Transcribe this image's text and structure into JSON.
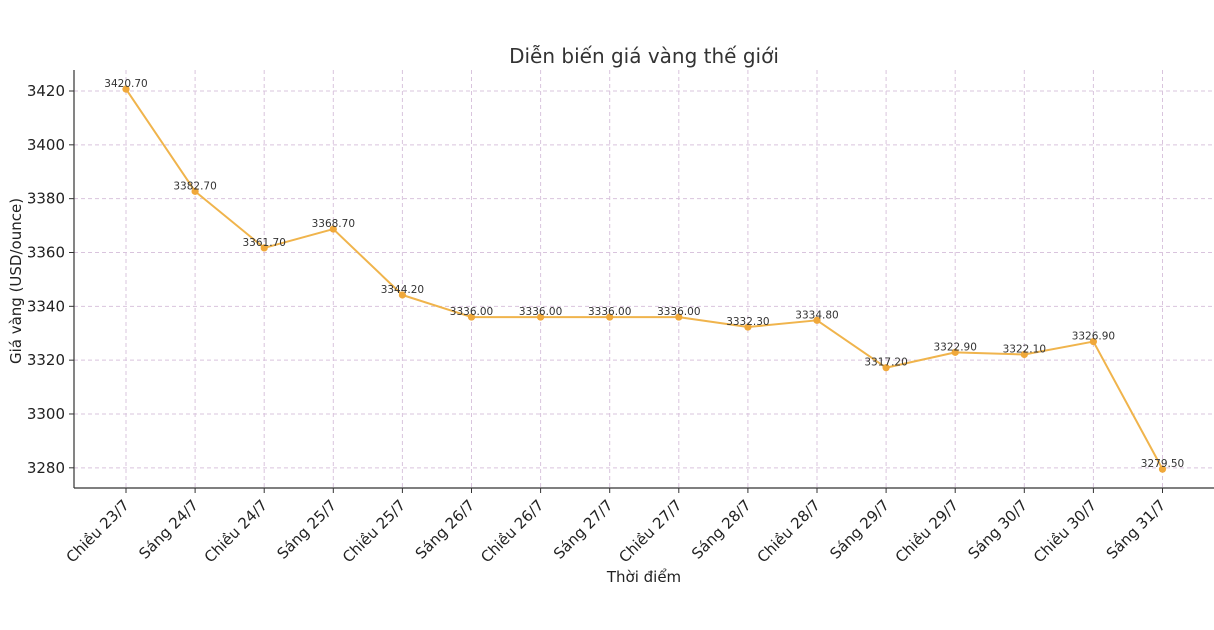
{
  "chart_data": {
    "type": "line",
    "title": "Diễn biến giá vàng thế giới",
    "xlabel": "Thời điểm",
    "ylabel": "Giá vàng (USD/ounce)",
    "categories": [
      "Chiều 23/7",
      "Sáng 24/7",
      "Chiều 24/7",
      "Sáng 25/7",
      "Chiều 25/7",
      "Sáng 26/7",
      "Chiều 26/7",
      "Sáng 27/7",
      "Chiều 27/7",
      "Sáng 28/7",
      "Chiều 28/7",
      "Sáng 29/7",
      "Chiều 29/7",
      "Sáng 30/7",
      "Chiều 30/7",
      "Sáng 31/7"
    ],
    "values": [
      3420.7,
      3382.7,
      3361.7,
      3368.7,
      3344.2,
      3336.0,
      3336.0,
      3336.0,
      3336.0,
      3332.3,
      3334.8,
      3317.2,
      3322.9,
      3322.1,
      3326.9,
      3279.5
    ],
    "data_labels": [
      "3420.70",
      "3382.70",
      "3361.70",
      "3368.70",
      "3344.20",
      "3336.00",
      "3336.00",
      "3336.00",
      "3336.00",
      "3332.30",
      "3334.80",
      "3317.20",
      "3322.90",
      "3322.10",
      "3326.90",
      "3279.50"
    ],
    "ylim": [
      3272.5,
      3427.8
    ],
    "yticks": [
      3280,
      3300,
      3320,
      3340,
      3360,
      3380,
      3400,
      3420
    ],
    "ytick_labels": [
      "3280",
      "3300",
      "3320",
      "3340",
      "3360",
      "3380",
      "3400",
      "3420"
    ],
    "grid": true,
    "line_color": "#f0b44c",
    "marker_color": "#f0a83a",
    "grid_color": "#d9c4dd"
  }
}
